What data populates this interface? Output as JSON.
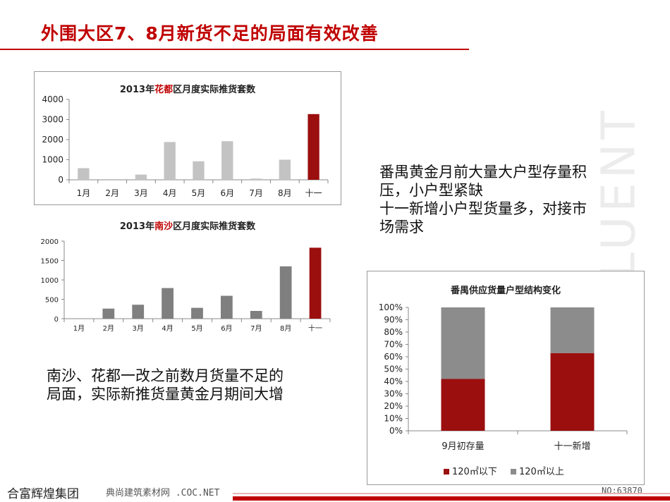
{
  "page": {
    "title": "外围大区7、8月新货不足的局面有效改善",
    "side_watermark": "HOPEFLUENT",
    "dot": "。",
    "footer_logo": "合富辉煌集团",
    "footer_url": "典尚建筑素材网 .COC.NET",
    "footer_code": "NO:63870"
  },
  "notes": {
    "panyu_line1": "番禺黄金月前大量大户型存量积",
    "panyu_line2": "压，小户型紧缺",
    "panyu_line3": "十一新增小户型货量多，对接市",
    "panyu_line4": "场需求",
    "south_line1": "南沙、花都一改之前数月货量不足的",
    "south_line2": "局面，实际新推货量黄金月期间大增"
  },
  "chart_data": [
    {
      "type": "bar",
      "title_prefix": "2013年",
      "title_highlight": "花都",
      "title_suffix": "区月度实际推货套数",
      "categories": [
        "1月",
        "2月",
        "3月",
        "4月",
        "5月",
        "6月",
        "7月",
        "8月",
        "十一"
      ],
      "values": [
        580,
        0,
        260,
        1880,
        920,
        1920,
        60,
        1000,
        3270
      ],
      "highlight_index": 8,
      "ylim": [
        0,
        4000
      ],
      "yticks": [
        0,
        1000,
        2000,
        3000,
        4000
      ],
      "grid": false,
      "colors": {
        "bar": "#c3c3c3",
        "highlight": "#9b0f0f"
      }
    },
    {
      "type": "bar",
      "title_prefix": "2013年",
      "title_highlight": "南沙",
      "title_suffix": "区月度实际推货套数",
      "categories": [
        "1月",
        "2月",
        "3月",
        "4月",
        "5月",
        "6月",
        "7月",
        "8月",
        "十一"
      ],
      "values": [
        0,
        260,
        360,
        790,
        280,
        590,
        200,
        1350,
        1830
      ],
      "highlight_index": 8,
      "ylim": [
        0,
        2000
      ],
      "yticks": [
        0,
        500,
        1000,
        1500,
        2000
      ],
      "grid": false,
      "colors": {
        "bar": "#7f7f7f",
        "highlight": "#9b0f0f"
      }
    },
    {
      "type": "bar",
      "stacked": true,
      "percent": true,
      "title": "番禺供应货量户型结构变化",
      "categories": [
        "9月初存量",
        "十一新增"
      ],
      "series": [
        {
          "name": "120㎡以下",
          "values": [
            42,
            63
          ],
          "color": "#9b0f0f"
        },
        {
          "name": "120㎡以上",
          "values": [
            58,
            37
          ],
          "color": "#8c8c8c"
        }
      ],
      "ylim": [
        0,
        100
      ],
      "yticks": [
        "0%",
        "10%",
        "20%",
        "30%",
        "40%",
        "50%",
        "60%",
        "70%",
        "80%",
        "90%",
        "100%"
      ],
      "legend_position": "bottom",
      "grid": false
    }
  ]
}
